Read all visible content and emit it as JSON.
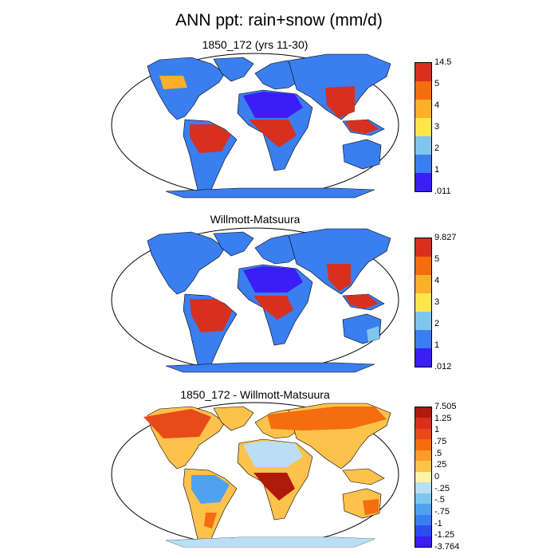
{
  "title": "ANN ppt: rain+snow (mm/d)",
  "panels": [
    {
      "title": "1850_172 (yrs 11-30)",
      "colorbar": {
        "labels": [
          "14.5",
          "5",
          "4",
          "3",
          "2",
          "1",
          ".011"
        ],
        "colors": [
          "#d7301f",
          "#f46d0f",
          "#fdae2b",
          "#fde64b",
          "#7ec6ee",
          "#3a7eef",
          "#3a1ef5"
        ]
      },
      "regions": [
        {
          "name": "tropical-south-america",
          "level": "high"
        },
        {
          "name": "central-africa",
          "level": "high"
        },
        {
          "name": "southeast-asia",
          "level": "high"
        },
        {
          "name": "sahara",
          "level": "low"
        },
        {
          "name": "antarctica",
          "level": "low"
        }
      ]
    },
    {
      "title": "Willmott-Matsuura",
      "colorbar": {
        "labels": [
          "9.827",
          "5",
          "4",
          "3",
          "2",
          "1",
          ".012"
        ],
        "colors": [
          "#d7301f",
          "#f46d0f",
          "#fdae2b",
          "#fde64b",
          "#7ec6ee",
          "#3a7eef",
          "#3a1ef5"
        ]
      },
      "regions": [
        {
          "name": "tropical-south-america",
          "level": "high"
        },
        {
          "name": "central-africa",
          "level": "high"
        },
        {
          "name": "southeast-asia",
          "level": "high"
        },
        {
          "name": "sahara",
          "level": "low"
        },
        {
          "name": "antarctica",
          "level": "low"
        }
      ]
    },
    {
      "title": "1850_172 - Willmott-Matsuura",
      "colorbar": {
        "labels": [
          "7.505",
          "1.25",
          "1",
          ".75",
          ".5",
          ".25",
          "0",
          "-.25",
          "-.5",
          "-.75",
          "-1",
          "-1.25",
          "-3.764"
        ],
        "colors": [
          "#b01a0a",
          "#d7301f",
          "#e84a19",
          "#f46d0f",
          "#fd9a2b",
          "#fdc24b",
          "#fdf3a8",
          "#b9def5",
          "#7ec6ee",
          "#4ea2f0",
          "#3a7eef",
          "#2c4df0",
          "#3a1ef5"
        ]
      },
      "regions": [
        {
          "name": "northern-high-latitudes",
          "level": "wet-bias"
        },
        {
          "name": "sahara",
          "level": "near-zero"
        },
        {
          "name": "amazon",
          "level": "dry-bias"
        },
        {
          "name": "central-africa",
          "level": "wet-bias"
        }
      ]
    }
  ]
}
